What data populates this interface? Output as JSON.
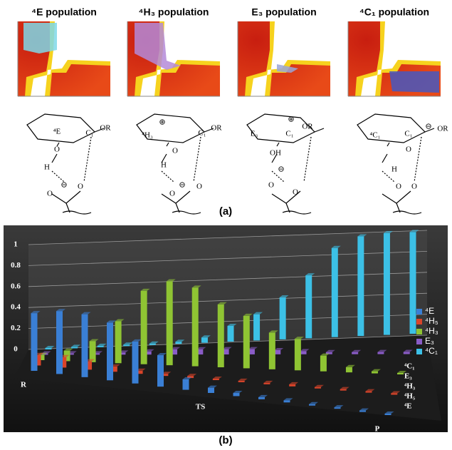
{
  "panel_a": {
    "label": "(a)",
    "populations": [
      {
        "title": "⁴E population",
        "structure_labels": [
          "⁴E",
          "C₁",
          "OR",
          "O",
          "H",
          "⊖",
          "O",
          "O"
        ]
      },
      {
        "title": "⁴H₃ population",
        "structure_labels": [
          "⊕",
          "⁴H₃",
          "C₁",
          "OR",
          "O",
          "H",
          "⊖",
          "O",
          "O"
        ]
      },
      {
        "title": "E₃ population",
        "structure_labels": [
          "⊕",
          "E₃",
          "C₁",
          "OR",
          "OH",
          "⊖",
          "O",
          "O"
        ]
      },
      {
        "title": "⁴C₁ population",
        "structure_labels": [
          "⁴C₁",
          "C₁",
          "⊖",
          "OR",
          "O",
          "H",
          "O",
          "O"
        ]
      }
    ]
  },
  "chart_data": {
    "type": "bar3d",
    "label": "(b)",
    "categories": [
      "R",
      null,
      null,
      null,
      null,
      null,
      null,
      "TS",
      null,
      null,
      null,
      null,
      null,
      null,
      "P"
    ],
    "series": [
      {
        "name": "⁴E",
        "color": "#3a7fd5",
        "values": [
          0.55,
          0.6,
          0.6,
          0.55,
          0.4,
          0.3,
          0.1,
          0.05,
          0.03,
          0.02,
          0.02,
          0.01,
          0.01,
          0.01,
          0.01
        ]
      },
      {
        "name": "⁴H₅",
        "color": "#d9442a",
        "values": [
          0.1,
          0.1,
          0.08,
          0.05,
          0.03,
          0.02,
          0.02,
          0.01,
          0.01,
          0.01,
          0.02,
          0.01,
          0.01,
          0.01,
          0.01
        ]
      },
      {
        "name": "⁴H₃",
        "color": "#8fc433",
        "values": [
          0.05,
          0.1,
          0.2,
          0.4,
          0.7,
          0.8,
          0.75,
          0.6,
          0.5,
          0.35,
          0.3,
          0.15,
          0.05,
          0.02,
          0.01
        ]
      },
      {
        "name": "E₃",
        "color": "#8a5cc7",
        "values": [
          0.01,
          0.01,
          0.01,
          0.02,
          0.03,
          0.05,
          0.05,
          0.05,
          0.05,
          0.04,
          0.03,
          0.02,
          0.02,
          0.02,
          0.02
        ]
      },
      {
        "name": "⁴C₁",
        "color": "#3cc0e6",
        "values": [
          0.01,
          0.01,
          0.01,
          0.01,
          0.01,
          0.02,
          0.05,
          0.15,
          0.25,
          0.4,
          0.6,
          0.85,
          0.95,
          0.97,
          0.97
        ]
      }
    ],
    "ylim": [
      0,
      1
    ],
    "yticks": [
      0,
      0.2,
      0.4,
      0.6,
      0.8,
      1
    ],
    "grid": true,
    "legend": "right"
  }
}
